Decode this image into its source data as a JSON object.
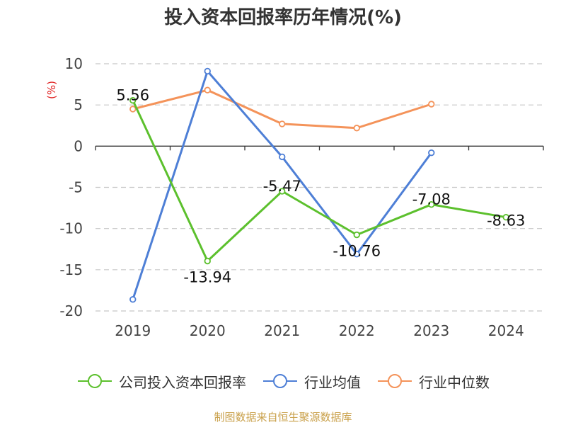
{
  "chart_data": {
    "type": "line",
    "title": "投入资本回报率历年情况(%)",
    "ylabel": "(%)",
    "categories": [
      "2019",
      "2020",
      "2021",
      "2022",
      "2023",
      "2024"
    ],
    "ylim": [
      -20,
      10
    ],
    "yticks": [
      10,
      5,
      0,
      -5,
      -10,
      -15,
      -20
    ],
    "grid": true,
    "legend": "bottom",
    "series": [
      {
        "name": "公司投入资本回报率",
        "color": "#5cc02d",
        "values": [
          5.56,
          -13.94,
          -5.47,
          -10.76,
          -7.08,
          -8.63
        ],
        "labels": [
          "5.56",
          "-13.94",
          "-5.47",
          "-10.76",
          "-7.08",
          "-8.63"
        ]
      },
      {
        "name": "行业均值",
        "color": "#4e7fd6",
        "values": [
          -18.6,
          9.1,
          -1.3,
          -13.1,
          -0.8,
          null
        ]
      },
      {
        "name": "行业中位数",
        "color": "#f4935a",
        "values": [
          4.5,
          6.8,
          2.7,
          2.2,
          5.1,
          null
        ]
      }
    ]
  },
  "source": "制图数据来自恒生聚源数据库"
}
